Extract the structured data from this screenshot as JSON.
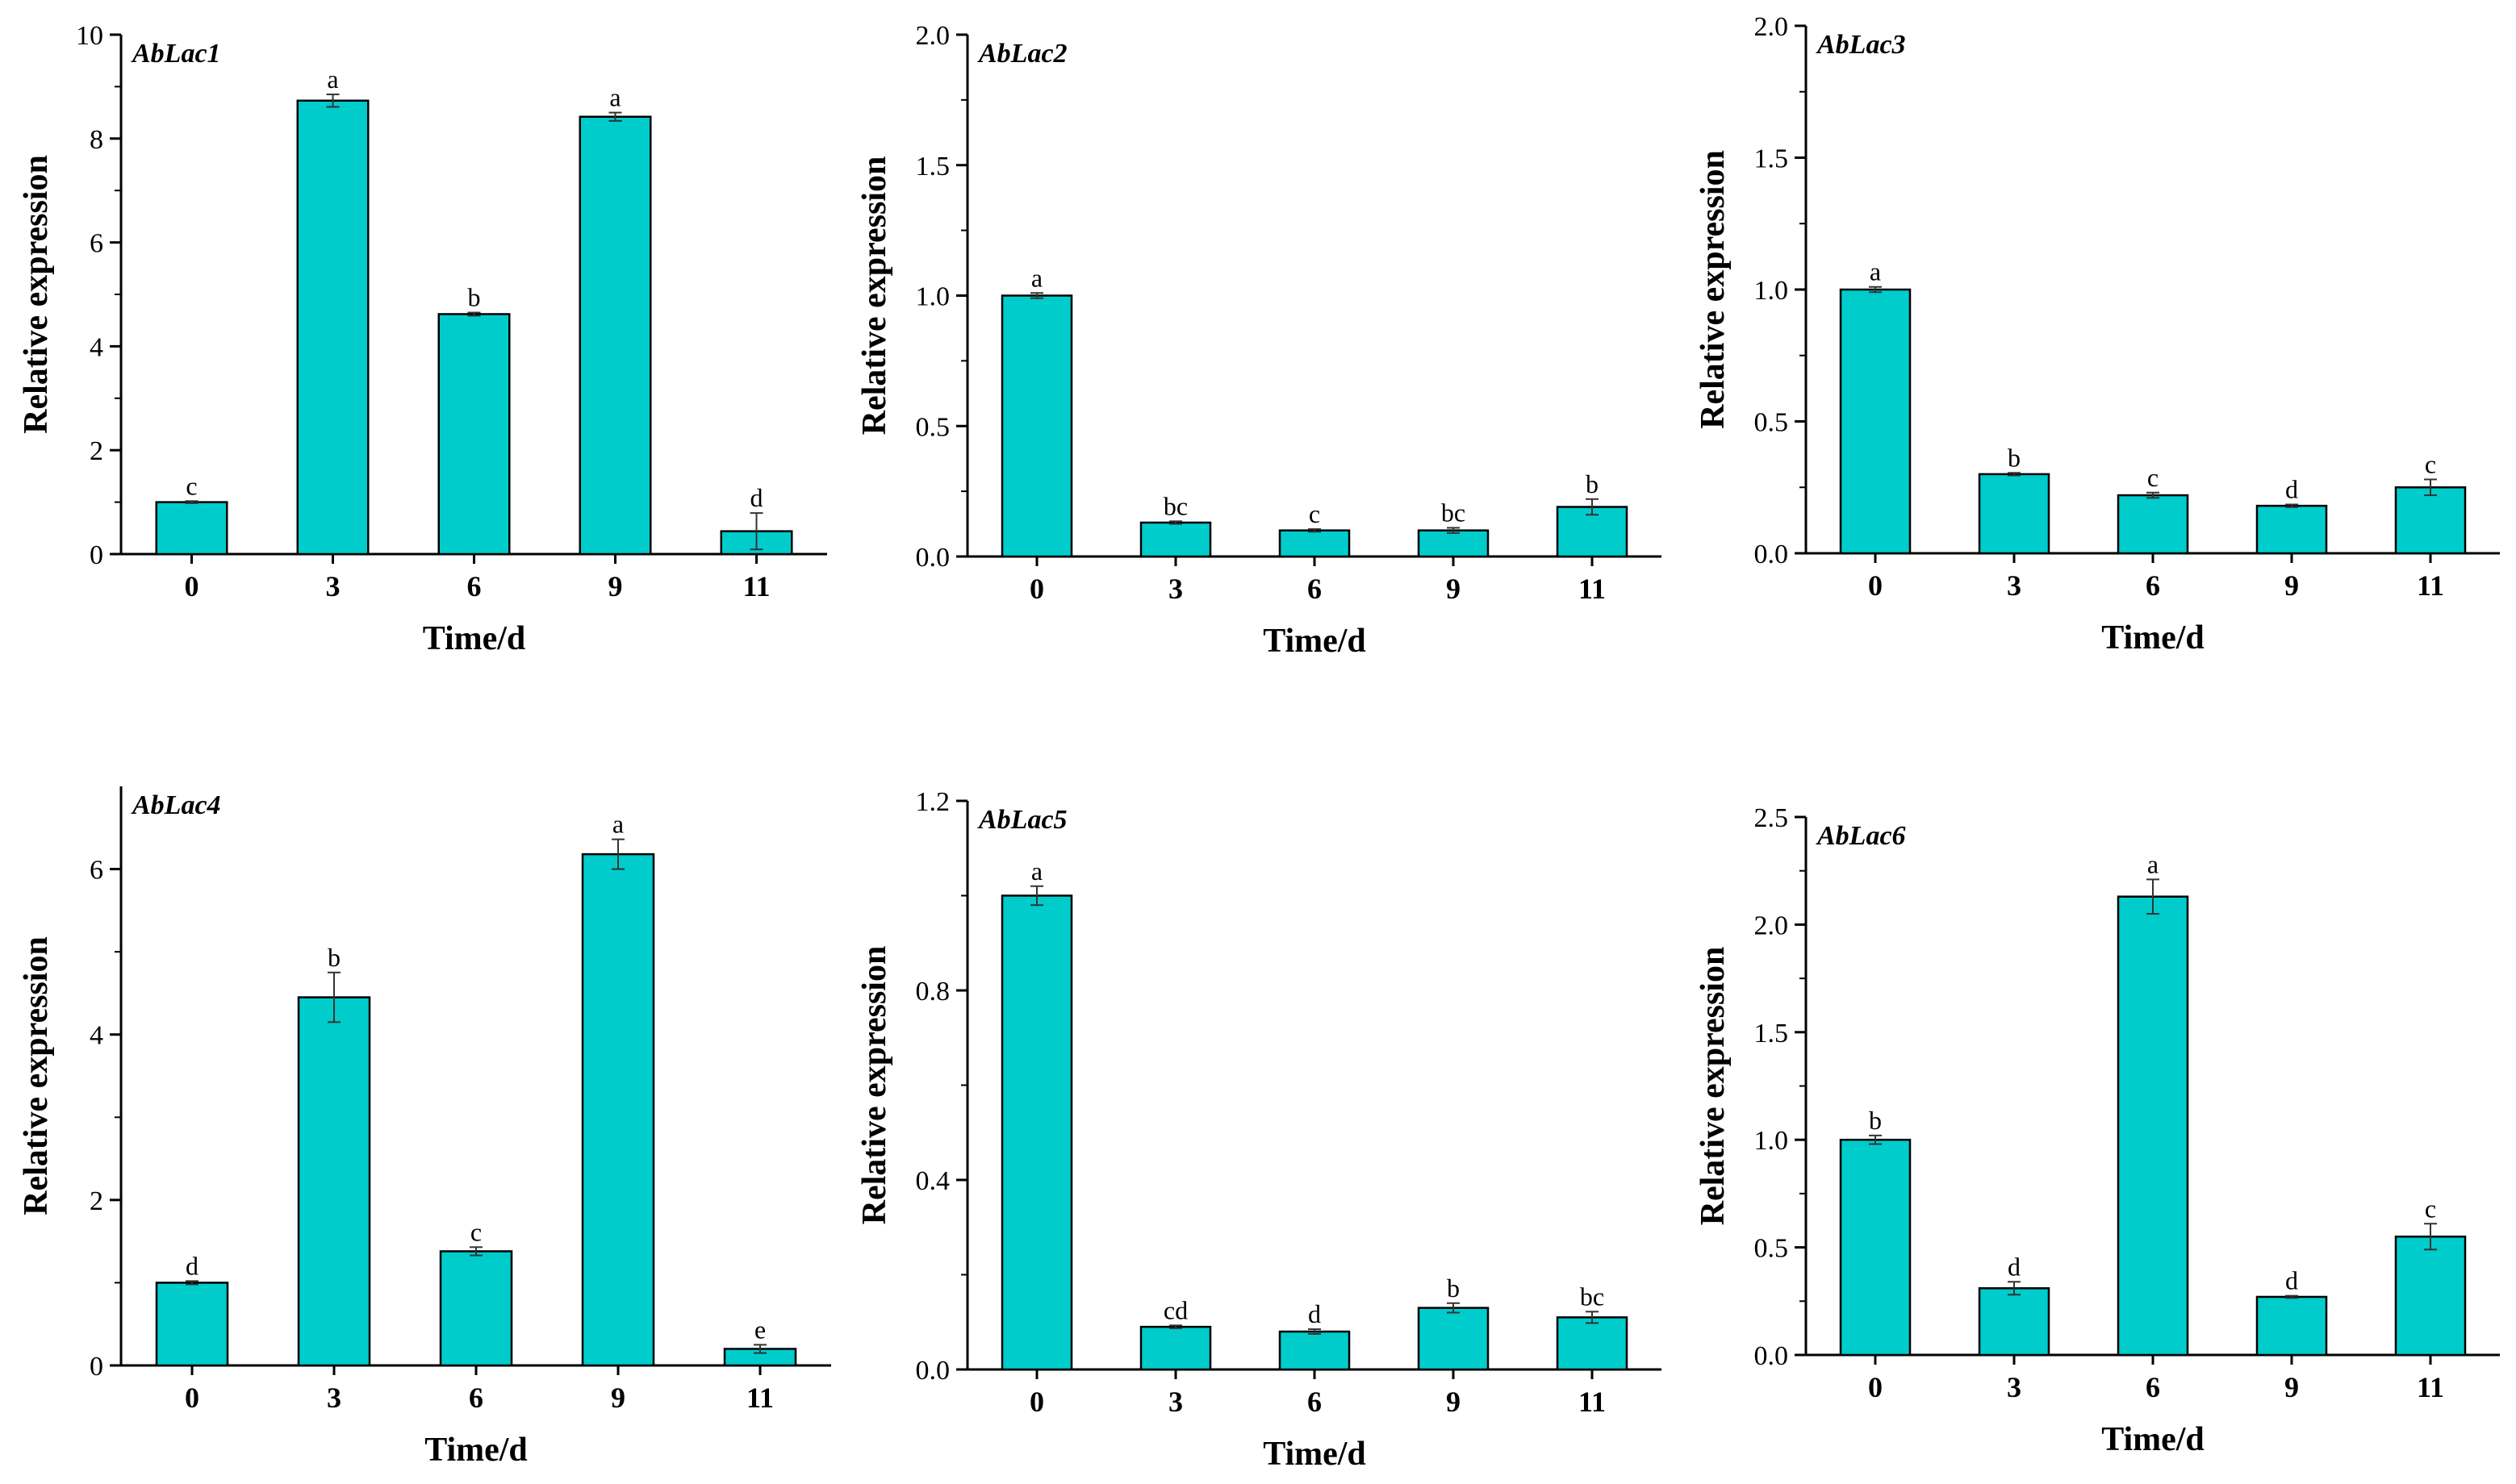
{
  "chart_data": [
    {
      "type": "bar",
      "title": "AbLac1",
      "xlabel": "Time/d",
      "ylabel": "Relative expression",
      "categories": [
        "0",
        "3",
        "6",
        "9",
        "11"
      ],
      "values": [
        1.0,
        8.73,
        4.62,
        8.42,
        0.44
      ],
      "errors": [
        0.02,
        0.12,
        0.03,
        0.08,
        0.35
      ],
      "letters": [
        "c",
        "a",
        "b",
        "a",
        "d"
      ],
      "ylim": [
        0,
        10
      ],
      "yticks": [
        "0",
        "2",
        "4",
        "6",
        "8",
        "10"
      ],
      "color": "#00CCCC"
    },
    {
      "type": "bar",
      "title": "AbLac2",
      "xlabel": "Time/d",
      "ylabel": "Relative expression",
      "categories": [
        "0",
        "3",
        "6",
        "9",
        "11"
      ],
      "values": [
        1.0,
        0.13,
        0.1,
        0.1,
        0.19
      ],
      "errors": [
        0.01,
        0.005,
        0.005,
        0.01,
        0.03
      ],
      "letters": [
        "a",
        "bc",
        "c",
        "bc",
        "b"
      ],
      "ylim": [
        0,
        2.0
      ],
      "yticks": [
        "0.0",
        "0.5",
        "1.0",
        "1.5",
        "2.0"
      ],
      "color": "#00CCCC"
    },
    {
      "type": "bar",
      "title": "AbLac3",
      "xlabel": "Time/d",
      "ylabel": "Relative expression",
      "categories": [
        "0",
        "3",
        "6",
        "9",
        "11"
      ],
      "values": [
        1.0,
        0.3,
        0.22,
        0.18,
        0.25
      ],
      "errors": [
        0.01,
        0.005,
        0.01,
        0.005,
        0.03
      ],
      "letters": [
        "a",
        "b",
        "c",
        "d",
        "c"
      ],
      "ylim": [
        0,
        2.0
      ],
      "yticks": [
        "0.0",
        "0.5",
        "1.0",
        "1.5",
        "2.0"
      ],
      "color": "#00CCCC"
    },
    {
      "type": "bar",
      "title": "AbLac4",
      "xlabel": "Time/d",
      "ylabel": "Relative expression",
      "categories": [
        "0",
        "3",
        "6",
        "9",
        "11"
      ],
      "values": [
        1.0,
        4.45,
        1.38,
        6.18,
        0.2
      ],
      "errors": [
        0.02,
        0.3,
        0.05,
        0.18,
        0.05
      ],
      "letters": [
        "d",
        "b",
        "c",
        "a",
        "e"
      ],
      "ylim": [
        0,
        7
      ],
      "yticks": [
        "0",
        "2",
        "4",
        "6"
      ],
      "color": "#00CCCC"
    },
    {
      "type": "bar",
      "title": "AbLac5",
      "xlabel": "Time/d",
      "ylabel": "Relative expression",
      "categories": [
        "0",
        "3",
        "6",
        "9",
        "11"
      ],
      "values": [
        1.0,
        0.09,
        0.08,
        0.13,
        0.11
      ],
      "errors": [
        0.02,
        0.003,
        0.005,
        0.01,
        0.012
      ],
      "letters": [
        "a",
        "cd",
        "d",
        "b",
        "bc"
      ],
      "ylim": [
        0,
        1.2
      ],
      "yticks": [
        "0.0",
        "0.4",
        "0.8",
        "1.2"
      ],
      "color": "#00CCCC"
    },
    {
      "type": "bar",
      "title": "AbLac6",
      "xlabel": "Time/d",
      "ylabel": "Relative expression",
      "categories": [
        "0",
        "3",
        "6",
        "9",
        "11"
      ],
      "values": [
        1.0,
        0.31,
        2.13,
        0.27,
        0.55
      ],
      "errors": [
        0.02,
        0.03,
        0.08,
        0.005,
        0.06
      ],
      "letters": [
        "b",
        "d",
        "a",
        "d",
        "c"
      ],
      "ylim": [
        0,
        2.5
      ],
      "yticks": [
        "0.0",
        "0.5",
        "1.0",
        "1.5",
        "2.0",
        "2.5"
      ],
      "color": "#00CCCC"
    }
  ]
}
